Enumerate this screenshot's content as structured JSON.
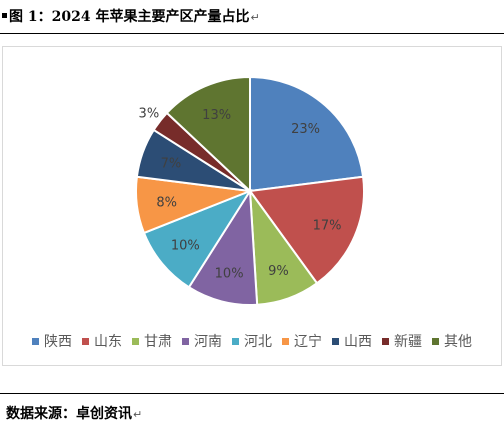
{
  "figure": {
    "title": "图 1：2024 年苹果主要产区产量占比",
    "return_mark": "↵",
    "source": "数据来源：卓创资讯"
  },
  "chart_data": {
    "type": "pie",
    "title": "",
    "start_angle_deg": 0,
    "direction": "clockwise",
    "legend_position": "bottom",
    "categories": [
      "陕西",
      "山东",
      "甘肃",
      "河南",
      "河北",
      "辽宁",
      "山西",
      "新疆",
      "其他"
    ],
    "values": [
      23,
      17,
      9,
      10,
      10,
      8,
      7,
      3,
      13
    ],
    "labels": [
      "23%",
      "17%",
      "9%",
      "10%",
      "10%",
      "8%",
      "7%",
      "3%",
      "13%"
    ],
    "colors": [
      "#4f81bd",
      "#c0504d",
      "#9bbb59",
      "#8064a2",
      "#4bacc6",
      "#f79646",
      "#2c4d75",
      "#772c2a",
      "#5f7530"
    ]
  }
}
